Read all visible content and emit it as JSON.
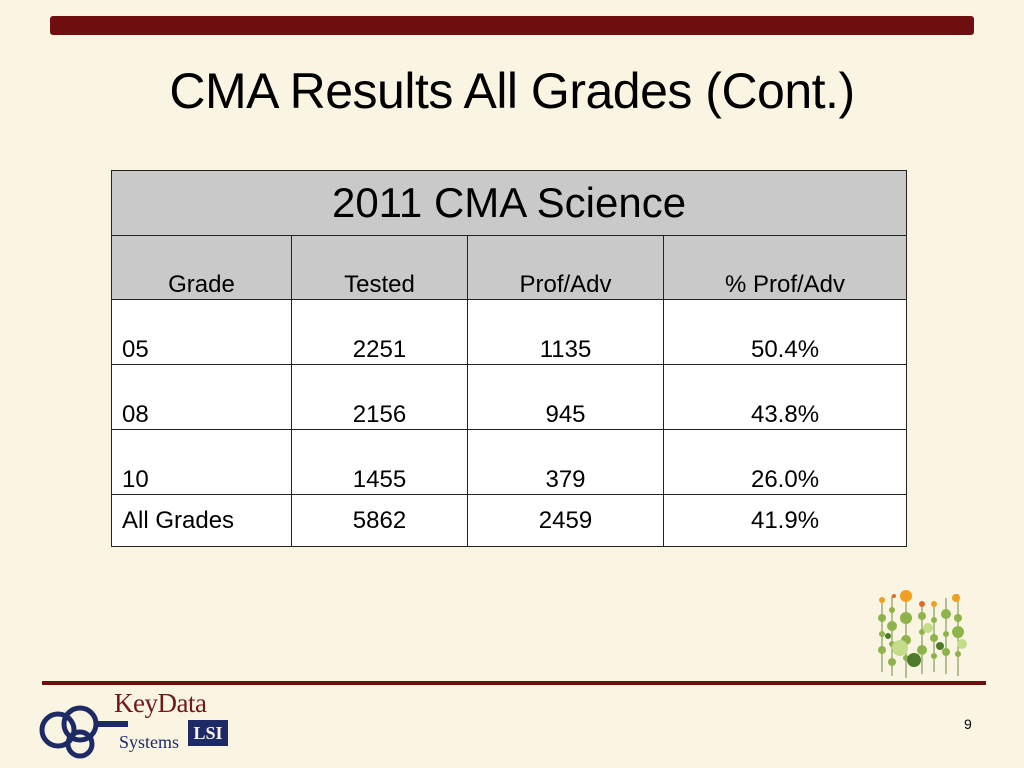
{
  "slide": {
    "title": "CMA Results All Grades (Cont.)",
    "page_number": "9"
  },
  "table": {
    "caption": "2011 CMA Science",
    "headers": [
      "Grade",
      "Tested",
      "Prof/Adv",
      "% Prof/Adv"
    ],
    "rows": [
      [
        "05",
        "2251",
        "1135",
        "50.4%"
      ],
      [
        "08",
        "2156",
        "945",
        "43.8%"
      ],
      [
        "10",
        "1455",
        "379",
        "26.0%"
      ]
    ],
    "total": [
      "All Grades",
      "5862",
      "2459",
      "41.9%"
    ]
  },
  "logo": {
    "name": "KeyData",
    "sub": "Systems",
    "mark_text": "LSI"
  },
  "colors": {
    "background": "#FAF4E3",
    "accent_bar": "#6E0E0E",
    "table_header": "#C9C9C9",
    "table_body": "#FFFFFF"
  }
}
